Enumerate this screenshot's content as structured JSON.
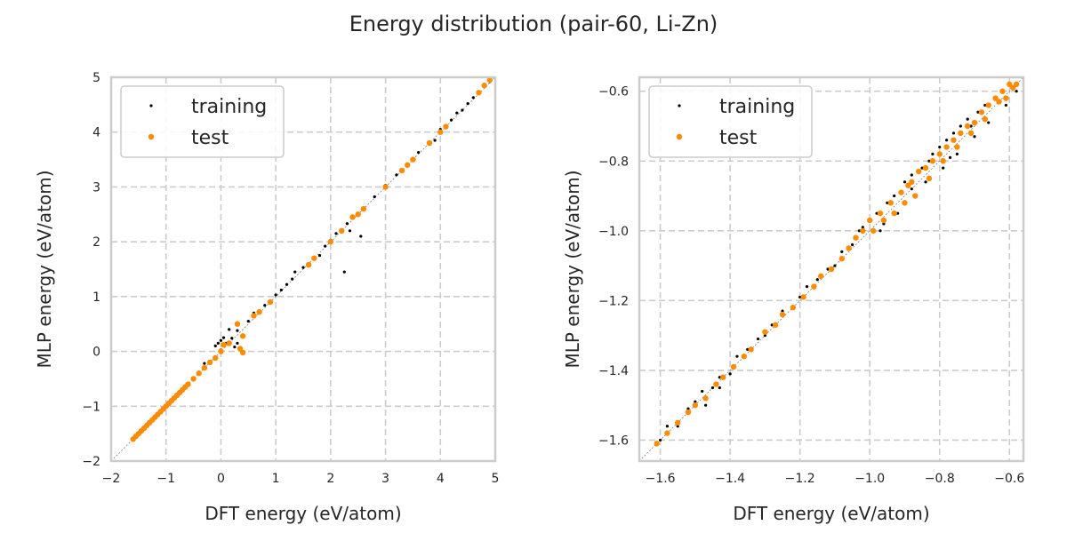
{
  "figure": {
    "title": "Energy distribution (pair-60, Li-Zn)"
  },
  "colors": {
    "training": "#000000",
    "test": "#ff8c00",
    "grid": "#cccccc",
    "diagonal": "#7f7f7f"
  },
  "chart_data": [
    {
      "type": "scatter",
      "xlabel": "DFT energy (eV/atom)",
      "ylabel": "MLP energy (eV/atom)",
      "xlim": [
        -2,
        5
      ],
      "ylim": [
        -2,
        5
      ],
      "xticks": [
        -2,
        -1,
        0,
        1,
        2,
        3,
        4,
        5
      ],
      "yticks": [
        -2,
        -1,
        0,
        1,
        2,
        3,
        4,
        5
      ],
      "xtick_labels": [
        "−2",
        "−1",
        "0",
        "1",
        "2",
        "3",
        "4",
        "5"
      ],
      "ytick_labels": [
        "−2",
        "−1",
        "0",
        "1",
        "2",
        "3",
        "4",
        "5"
      ],
      "grid": true,
      "legend_position": "top-left",
      "diagonal_reference": true,
      "series": [
        {
          "name": "training",
          "color": "#000000",
          "points": [
            [
              -1.6,
              -1.61
            ],
            [
              -1.5,
              -1.51
            ],
            [
              -1.4,
              -1.39
            ],
            [
              -1.2,
              -1.19
            ],
            [
              -1.0,
              -0.99
            ],
            [
              -0.8,
              -0.8
            ],
            [
              -0.6,
              -0.59
            ],
            [
              -0.4,
              -0.38
            ],
            [
              -0.2,
              -0.18
            ],
            [
              0.0,
              0.03
            ],
            [
              0.1,
              0.15
            ],
            [
              0.2,
              0.24
            ],
            [
              0.3,
              0.38
            ],
            [
              -0.1,
              0.1
            ],
            [
              0.0,
              0.2
            ],
            [
              -0.05,
              0.15
            ],
            [
              0.15,
              0.4
            ],
            [
              0.3,
              0.15
            ],
            [
              0.5,
              0.55
            ],
            [
              0.6,
              0.65
            ],
            [
              0.7,
              0.72
            ],
            [
              0.8,
              0.84
            ],
            [
              0.9,
              0.9
            ],
            [
              1.0,
              1.03
            ],
            [
              1.1,
              1.12
            ],
            [
              1.2,
              1.22
            ],
            [
              1.3,
              1.32
            ],
            [
              1.5,
              1.53
            ],
            [
              1.6,
              1.58
            ],
            [
              1.7,
              1.68
            ],
            [
              1.9,
              1.92
            ],
            [
              2.0,
              2.03
            ],
            [
              2.1,
              2.15
            ],
            [
              2.3,
              2.33
            ],
            [
              2.5,
              2.48
            ],
            [
              2.6,
              2.62
            ],
            [
              2.8,
              2.82
            ],
            [
              3.0,
              3.03
            ],
            [
              3.2,
              3.22
            ],
            [
              3.4,
              3.42
            ],
            [
              3.6,
              3.63
            ],
            [
              3.8,
              3.82
            ],
            [
              3.9,
              3.85
            ],
            [
              4.0,
              4.05
            ],
            [
              4.2,
              4.22
            ],
            [
              4.3,
              4.35
            ],
            [
              4.4,
              4.4
            ],
            [
              4.5,
              4.52
            ],
            [
              4.6,
              4.63
            ],
            [
              4.7,
              4.72
            ],
            [
              4.8,
              4.85
            ],
            [
              4.9,
              4.92
            ],
            [
              2.25,
              1.45
            ],
            [
              2.35,
              2.2
            ],
            [
              2.55,
              2.1
            ],
            [
              1.8,
              1.75
            ],
            [
              0.6,
              0.7
            ],
            [
              1.35,
              1.45
            ],
            [
              -0.3,
              -0.22
            ],
            [
              0.05,
              0.25
            ],
            [
              0.25,
              0.08
            ]
          ]
        },
        {
          "name": "test",
          "color": "#ff8c00",
          "points": [
            [
              -1.6,
              -1.6
            ],
            [
              -1.55,
              -1.55
            ],
            [
              -1.5,
              -1.5
            ],
            [
              -1.45,
              -1.45
            ],
            [
              -1.4,
              -1.4
            ],
            [
              -1.35,
              -1.35
            ],
            [
              -1.3,
              -1.3
            ],
            [
              -1.25,
              -1.25
            ],
            [
              -1.2,
              -1.2
            ],
            [
              -1.15,
              -1.15
            ],
            [
              -1.1,
              -1.1
            ],
            [
              -1.05,
              -1.05
            ],
            [
              -1.0,
              -1.0
            ],
            [
              -0.95,
              -0.95
            ],
            [
              -0.9,
              -0.9
            ],
            [
              -0.85,
              -0.85
            ],
            [
              -0.8,
              -0.8
            ],
            [
              -0.75,
              -0.75
            ],
            [
              -0.7,
              -0.7
            ],
            [
              -0.65,
              -0.65
            ],
            [
              -0.6,
              -0.6
            ],
            [
              -0.5,
              -0.5
            ],
            [
              -0.4,
              -0.4
            ],
            [
              -0.3,
              -0.3
            ],
            [
              -0.2,
              -0.2
            ],
            [
              -0.1,
              -0.12
            ],
            [
              0.0,
              0.0
            ],
            [
              0.05,
              0.12
            ],
            [
              0.15,
              0.15
            ],
            [
              0.3,
              0.5
            ],
            [
              0.4,
              0.28
            ],
            [
              0.35,
              0.05
            ],
            [
              0.4,
              -0.02
            ],
            [
              0.6,
              0.65
            ],
            [
              0.7,
              0.72
            ],
            [
              0.9,
              0.9
            ],
            [
              1.6,
              1.58
            ],
            [
              1.7,
              1.7
            ],
            [
              2.0,
              2.0
            ],
            [
              2.2,
              2.2
            ],
            [
              2.4,
              2.45
            ],
            [
              2.5,
              2.5
            ],
            [
              2.6,
              2.6
            ],
            [
              3.0,
              3.0
            ],
            [
              3.3,
              3.3
            ],
            [
              3.4,
              3.4
            ],
            [
              3.5,
              3.5
            ],
            [
              3.8,
              3.8
            ],
            [
              4.0,
              4.0
            ],
            [
              4.1,
              4.1
            ],
            [
              4.7,
              4.72
            ],
            [
              4.8,
              4.85
            ],
            [
              4.9,
              4.95
            ]
          ]
        }
      ]
    },
    {
      "type": "scatter",
      "xlabel": "DFT energy (eV/atom)",
      "ylabel": "MLP energy (eV/atom)",
      "xlim": [
        -1.66,
        -0.56
      ],
      "ylim": [
        -1.66,
        -0.56
      ],
      "xticks": [
        -1.6,
        -1.4,
        -1.2,
        -1.0,
        -0.8,
        -0.6
      ],
      "yticks": [
        -1.6,
        -1.4,
        -1.2,
        -1.0,
        -0.8,
        -0.6
      ],
      "xtick_labels": [
        "−1.6",
        "−1.4",
        "−1.2",
        "−1.0",
        "−0.8",
        "−0.6"
      ],
      "ytick_labels": [
        "−1.6",
        "−1.4",
        "−1.2",
        "−1.0",
        "−0.8",
        "−0.6"
      ],
      "grid": true,
      "legend_position": "top-left",
      "diagonal_reference": true,
      "series": [
        {
          "name": "training",
          "color": "#000000",
          "points": [
            [
              -1.6,
              -1.6
            ],
            [
              -1.58,
              -1.56
            ],
            [
              -1.55,
              -1.56
            ],
            [
              -1.52,
              -1.51
            ],
            [
              -1.5,
              -1.49
            ],
            [
              -1.48,
              -1.46
            ],
            [
              -1.45,
              -1.45
            ],
            [
              -1.43,
              -1.42
            ],
            [
              -1.4,
              -1.41
            ],
            [
              -1.38,
              -1.36
            ],
            [
              -1.35,
              -1.34
            ],
            [
              -1.32,
              -1.31
            ],
            [
              -1.3,
              -1.3
            ],
            [
              -1.28,
              -1.27
            ],
            [
              -1.25,
              -1.23
            ],
            [
              -1.22,
              -1.22
            ],
            [
              -1.2,
              -1.19
            ],
            [
              -1.18,
              -1.16
            ],
            [
              -1.15,
              -1.14
            ],
            [
              -1.12,
              -1.11
            ],
            [
              -1.1,
              -1.1
            ],
            [
              -1.08,
              -1.06
            ],
            [
              -1.05,
              -1.04
            ],
            [
              -1.03,
              -1.0
            ],
            [
              -1.0,
              -0.97
            ],
            [
              -0.98,
              -0.95
            ],
            [
              -0.97,
              -1.0
            ],
            [
              -0.95,
              -0.92
            ],
            [
              -0.93,
              -0.9
            ],
            [
              -0.92,
              -0.95
            ],
            [
              -0.9,
              -0.86
            ],
            [
              -0.88,
              -0.84
            ],
            [
              -0.87,
              -0.9
            ],
            [
              -0.85,
              -0.82
            ],
            [
              -0.84,
              -0.86
            ],
            [
              -0.82,
              -0.78
            ],
            [
              -0.8,
              -0.76
            ],
            [
              -0.79,
              -0.82
            ],
            [
              -0.78,
              -0.74
            ],
            [
              -0.76,
              -0.72
            ],
            [
              -0.75,
              -0.78
            ],
            [
              -0.74,
              -0.7
            ],
            [
              -0.72,
              -0.68
            ],
            [
              -0.7,
              -0.73
            ],
            [
              -0.69,
              -0.66
            ],
            [
              -0.67,
              -0.64
            ],
            [
              -0.66,
              -0.69
            ],
            [
              -0.64,
              -0.62
            ],
            [
              -0.62,
              -0.6
            ],
            [
              -0.61,
              -0.64
            ],
            [
              -0.6,
              -0.58
            ],
            [
              -0.58,
              -0.6
            ],
            [
              -1.47,
              -1.5
            ],
            [
              -1.43,
              -1.45
            ],
            [
              -1.02,
              -0.99
            ],
            [
              -0.96,
              -0.98
            ],
            [
              -0.88,
              -0.88
            ],
            [
              -0.83,
              -0.8
            ],
            [
              -0.77,
              -0.79
            ],
            [
              -0.71,
              -0.7
            ]
          ]
        },
        {
          "name": "test",
          "color": "#ff8c00",
          "points": [
            [
              -1.61,
              -1.61
            ],
            [
              -1.58,
              -1.58
            ],
            [
              -1.55,
              -1.55
            ],
            [
              -1.52,
              -1.52
            ],
            [
              -1.5,
              -1.5
            ],
            [
              -1.47,
              -1.48
            ],
            [
              -1.44,
              -1.44
            ],
            [
              -1.42,
              -1.42
            ],
            [
              -1.39,
              -1.39
            ],
            [
              -1.36,
              -1.36
            ],
            [
              -1.34,
              -1.34
            ],
            [
              -1.3,
              -1.29
            ],
            [
              -1.27,
              -1.27
            ],
            [
              -1.25,
              -1.24
            ],
            [
              -1.22,
              -1.22
            ],
            [
              -1.19,
              -1.19
            ],
            [
              -1.16,
              -1.16
            ],
            [
              -1.14,
              -1.13
            ],
            [
              -1.11,
              -1.11
            ],
            [
              -1.08,
              -1.08
            ],
            [
              -1.06,
              -1.05
            ],
            [
              -1.04,
              -1.02
            ],
            [
              -1.02,
              -1.0
            ],
            [
              -1.0,
              -0.97
            ],
            [
              -0.99,
              -1.0
            ],
            [
              -0.97,
              -0.95
            ],
            [
              -0.96,
              -0.97
            ],
            [
              -0.94,
              -0.92
            ],
            [
              -0.93,
              -0.95
            ],
            [
              -0.91,
              -0.89
            ],
            [
              -0.9,
              -0.92
            ],
            [
              -0.89,
              -0.87
            ],
            [
              -0.88,
              -0.86
            ],
            [
              -0.87,
              -0.9
            ],
            [
              -0.86,
              -0.83
            ],
            [
              -0.84,
              -0.82
            ],
            [
              -0.83,
              -0.85
            ],
            [
              -0.82,
              -0.8
            ],
            [
              -0.8,
              -0.78
            ],
            [
              -0.79,
              -0.8
            ],
            [
              -0.78,
              -0.76
            ],
            [
              -0.76,
              -0.74
            ],
            [
              -0.75,
              -0.76
            ],
            [
              -0.74,
              -0.72
            ],
            [
              -0.72,
              -0.7
            ],
            [
              -0.71,
              -0.72
            ],
            [
              -0.7,
              -0.69
            ],
            [
              -0.68,
              -0.66
            ],
            [
              -0.67,
              -0.68
            ],
            [
              -0.66,
              -0.64
            ],
            [
              -0.64,
              -0.62
            ],
            [
              -0.63,
              -0.63
            ],
            [
              -0.62,
              -0.6
            ],
            [
              -0.61,
              -0.62
            ],
            [
              -0.6,
              -0.58
            ],
            [
              -0.59,
              -0.59
            ],
            [
              -0.58,
              -0.58
            ]
          ]
        }
      ]
    }
  ]
}
